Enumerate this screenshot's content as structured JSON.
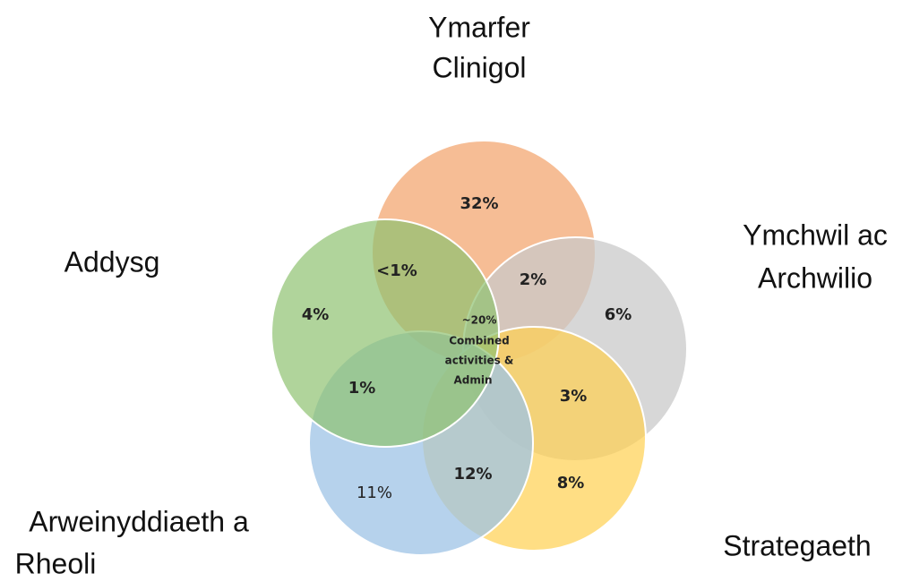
{
  "sets": [
    {
      "label": [
        "Ymarfer",
        "Clinigol"
      ]
    },
    {
      "label": [
        "Ymchwil ac",
        "Archwilio"
      ]
    },
    {
      "label": [
        "Strategaeth"
      ]
    },
    {
      "label": [
        "Arweinyddiaeth a",
        "Rheoli"
      ]
    },
    {
      "label": [
        "Addysg"
      ]
    }
  ],
  "regions": [
    {
      "label": "32%"
    },
    {
      "label": "<1%"
    },
    {
      "label": "2%"
    },
    {
      "label": "6%"
    },
    {
      "label": "4%"
    },
    {
      "label": "3%"
    },
    {
      "label": "1%"
    },
    {
      "label": "12%"
    },
    {
      "label": "8%"
    },
    {
      "label": "11%"
    }
  ],
  "center": {
    "label": [
      "~20%",
      "Combined",
      "activities &",
      "Admin"
    ]
  }
}
